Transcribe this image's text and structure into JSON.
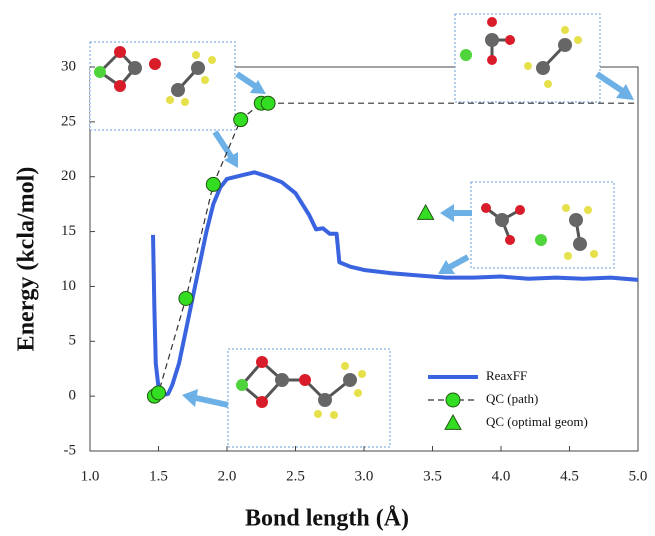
{
  "chart_data": {
    "type": "line",
    "xlabel": "Bond length (Å)",
    "ylabel": "Energy (kcla/mol)",
    "xlim": [
      1.0,
      5.0
    ],
    "ylim": [
      -5,
      30
    ],
    "xticks": [
      {
        "value": 1.0,
        "label": "1.0"
      },
      {
        "value": 1.5,
        "label": "1.5"
      },
      {
        "value": 2.0,
        "label": "2.0"
      },
      {
        "value": 2.5,
        "label": "2.5"
      },
      {
        "value": 3.0,
        "label": "3.0"
      },
      {
        "value": 3.5,
        "label": "3.5"
      },
      {
        "value": 4.0,
        "label": "4.0"
      },
      {
        "value": 4.5,
        "label": "4.5"
      },
      {
        "value": 5.0,
        "label": "5.0"
      }
    ],
    "yticks": [
      -5,
      0,
      5,
      10,
      15,
      20,
      25,
      30
    ],
    "grid": false,
    "legend": "lower right",
    "series": [
      {
        "name": "ReaxFF",
        "color": "#3a63e0",
        "style": "line",
        "x": [
          1.46,
          1.47,
          1.48,
          1.5,
          1.53,
          1.57,
          1.6,
          1.65,
          1.7,
          1.75,
          1.8,
          1.85,
          1.9,
          1.95,
          2.0,
          2.1,
          2.2,
          2.3,
          2.4,
          2.5,
          2.6,
          2.65,
          2.7,
          2.75,
          2.8,
          2.82,
          2.9,
          3.0,
          3.2,
          3.4,
          3.6,
          3.8,
          4.0,
          4.2,
          4.4,
          4.6,
          4.8,
          5.0
        ],
        "values": [
          14.7,
          8,
          3,
          0.8,
          0.1,
          0.2,
          1,
          3,
          6,
          9,
          12,
          15,
          17.5,
          19,
          19.8,
          20.1,
          20.4,
          20,
          19.5,
          18.5,
          16.5,
          15.2,
          15.3,
          14.8,
          14.8,
          12.2,
          11.8,
          11.5,
          11.2,
          11,
          10.8,
          10.8,
          10.9,
          10.7,
          10.8,
          10.7,
          10.8,
          10.6
        ]
      },
      {
        "name": "QC (path)",
        "color": "#33dd22",
        "style": "dashed-circles",
        "x": [
          1.47,
          1.5,
          1.7,
          1.9,
          2.1,
          2.25,
          2.3
        ],
        "values": [
          0,
          0.3,
          8.9,
          19.3,
          25.2,
          26.7,
          26.7
        ]
      },
      {
        "name": "QC (optimal geom)",
        "color": "#33dd22",
        "style": "triangle",
        "x": [
          3.45
        ],
        "values": [
          16.7
        ]
      }
    ]
  }
}
